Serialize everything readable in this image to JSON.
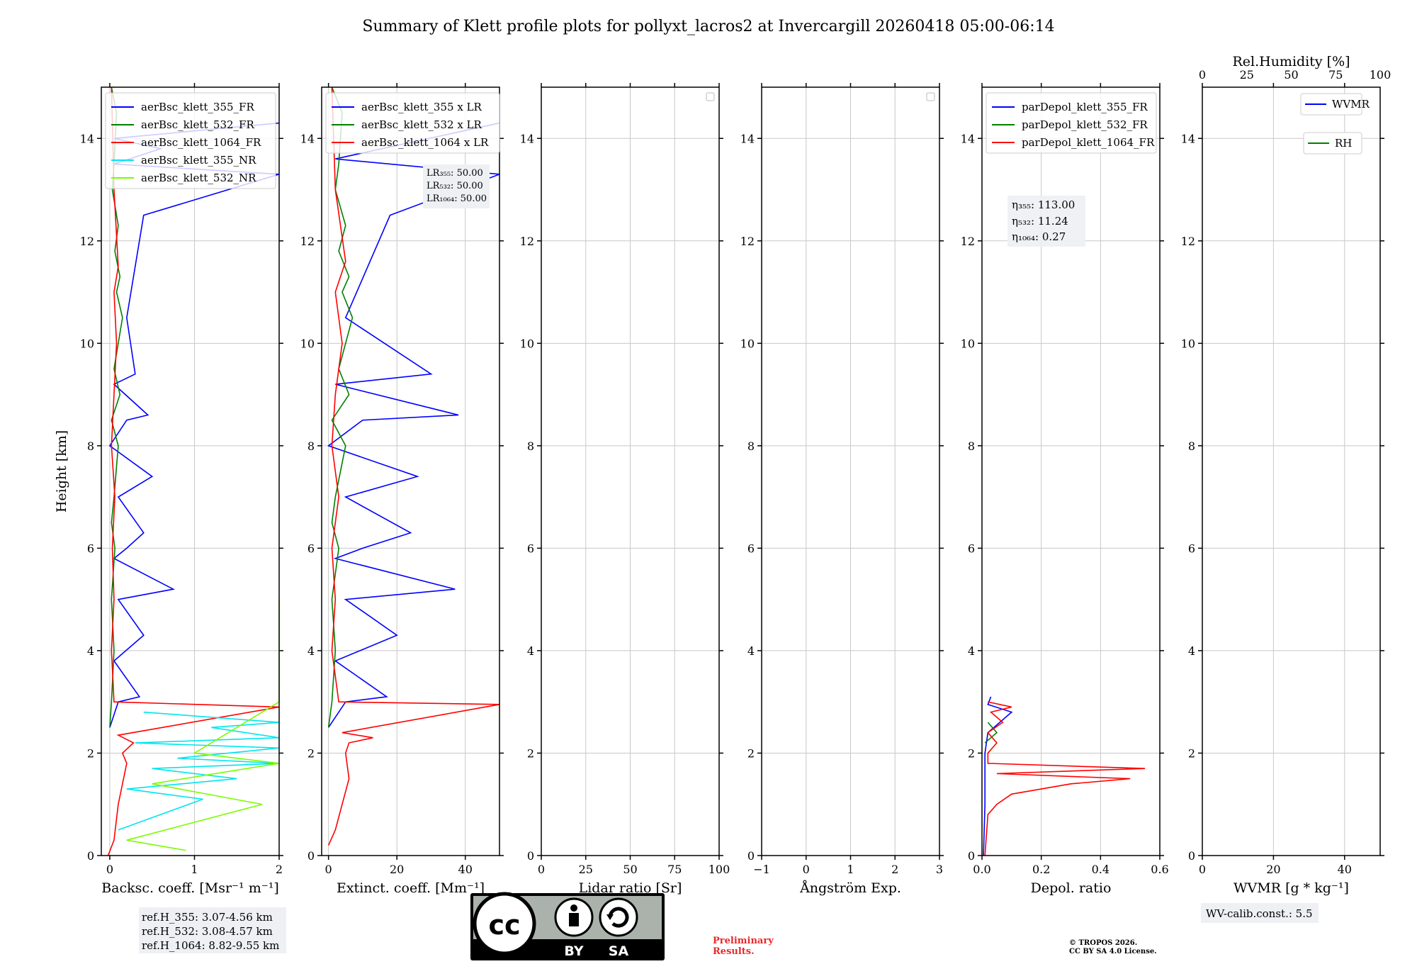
{
  "title": "Summary of Klett profile plots for pollyxt_lacros2 at Invercargill 20260418 05:00-06:14",
  "colors": {
    "c355": "#0000ff",
    "c532": "#008000",
    "c1064": "#ff0000",
    "nr355": "#00e5ee",
    "nr532": "#7cfc00",
    "grid": "#c8c8c8",
    "box": "#eef0f4",
    "prelim": "#e8282b"
  },
  "chart_data": [
    {
      "type": "line",
      "id": "bsc",
      "xlabel": "Backsc. coeff. [Msr⁻¹ m⁻¹]",
      "ylabel": "Height [km]",
      "xlim": [
        -0.1,
        2
      ],
      "ylim": [
        0,
        15
      ],
      "xticks": [
        0,
        1,
        2
      ],
      "xtick_labels": [
        "0",
        "1",
        "2"
      ],
      "yticks": [
        0,
        2,
        4,
        6,
        8,
        10,
        12,
        14
      ],
      "legend": [
        "aerBsc_klett_355_FR",
        "aerBsc_klett_532_FR",
        "aerBsc_klett_1064_FR",
        "aerBsc_klett_355_NR",
        "aerBsc_klett_532_NR"
      ],
      "series": [
        {
          "name": "aerBsc_klett_355_FR",
          "color": "c355",
          "x": [
            0,
            0.1,
            0.35,
            0.05,
            0.4,
            0.1,
            0.75,
            0.05,
            0.2,
            0.4,
            0.1,
            0.5,
            0.0,
            0.2,
            0.45,
            0.05,
            0.3,
            0.2,
            0.4,
            2.0,
            0.05,
            0.6,
            0.05,
            2.0
          ],
          "y": [
            2.5,
            3.0,
            3.1,
            3.8,
            4.3,
            5.0,
            5.2,
            5.8,
            6.0,
            6.3,
            7.0,
            7.4,
            8.0,
            8.5,
            8.6,
            9.2,
            9.4,
            10.5,
            12.5,
            13.3,
            13.5,
            13.8,
            14.0,
            14.3
          ]
        },
        {
          "name": "aerBsc_klett_532_FR",
          "color": "c532",
          "x": [
            0,
            0.02,
            0.05,
            0.02,
            0.06,
            0.02,
            0.05,
            0.1,
            0.02,
            0.12,
            0.05,
            0.15,
            0.08,
            0.12,
            0.06,
            0.1,
            0.03,
            0.05,
            0.08,
            0.02
          ],
          "y": [
            2.5,
            3.0,
            4.0,
            5.0,
            6.0,
            6.5,
            7.0,
            8.0,
            8.5,
            9.0,
            9.5,
            10.5,
            11.0,
            11.3,
            11.8,
            12.3,
            13.0,
            13.5,
            14.5,
            15.0
          ]
        },
        {
          "name": "aerBsc_klett_1064_FR",
          "color": "c1064",
          "x": [
            -0.02,
            0.05,
            0.1,
            0.2,
            0.15,
            0.28,
            0.1,
            2.0,
            0.05,
            0.02,
            0.05,
            0.03,
            0.06,
            0.02,
            0.05,
            0.08,
            0.05,
            0.1,
            0.05,
            0.02
          ],
          "y": [
            0,
            0.3,
            1.0,
            1.8,
            2.0,
            2.2,
            2.35,
            2.9,
            3.0,
            4.0,
            5.0,
            6.0,
            7.0,
            8.0,
            9.0,
            10.0,
            11.0,
            11.5,
            13.0,
            15.0
          ]
        },
        {
          "name": "aerBsc_klett_355_NR",
          "color": "nr355",
          "x": [
            0.1,
            1.1,
            0.2,
            1.5,
            0.5,
            2.0,
            0.8,
            2.0,
            0.3,
            2.0,
            1.2,
            2.0,
            0.4
          ],
          "y": [
            0.5,
            1.1,
            1.3,
            1.5,
            1.7,
            1.8,
            1.9,
            2.1,
            2.2,
            2.3,
            2.5,
            2.6,
            2.8
          ]
        },
        {
          "name": "aerBsc_klett_532_NR",
          "color": "nr532",
          "x": [
            0.9,
            0.2,
            1.8,
            0.5,
            2.0,
            1.0,
            2.0,
            2.0,
            2.0,
            2.0,
            2.0,
            2.0,
            2.0,
            2.0,
            2.0
          ],
          "y": [
            0.1,
            0.3,
            1.0,
            1.4,
            1.8,
            2.0,
            3.0,
            3.3,
            3.6,
            3.9,
            4.2,
            4.4,
            4.6,
            4.8,
            5.0
          ]
        }
      ]
    },
    {
      "type": "line",
      "id": "ext",
      "xlabel": "Extinct. coeff. [Mm⁻¹]",
      "xlim": [
        -2,
        50
      ],
      "ylim": [
        0,
        15
      ],
      "xticks": [
        0,
        20,
        40
      ],
      "xtick_labels": [
        "0",
        "20",
        "40"
      ],
      "yticks": [
        0,
        2,
        4,
        6,
        8,
        10,
        12,
        14
      ],
      "legend": [
        "aerBsc_klett_355 x LR",
        "aerBsc_klett_532 x LR",
        "aerBsc_klett_1064 x LR"
      ],
      "series": [
        {
          "name": "aerBsc_klett_355 x LR",
          "color": "c355",
          "x": [
            0,
            5,
            17,
            2,
            20,
            5,
            37,
            2,
            10,
            24,
            5,
            26,
            0,
            10,
            38,
            2,
            30,
            5,
            18,
            50,
            2,
            50
          ],
          "y": [
            2.5,
            3.0,
            3.1,
            3.8,
            4.3,
            5.0,
            5.2,
            5.8,
            6.0,
            6.3,
            7.0,
            7.4,
            8.0,
            8.5,
            8.6,
            9.2,
            9.4,
            10.5,
            12.5,
            13.3,
            13.6,
            14.3
          ]
        },
        {
          "name": "aerBsc_klett_532 x LR",
          "color": "c532",
          "x": [
            0,
            1,
            2,
            1,
            3,
            1,
            2,
            5,
            1,
            6,
            3,
            7,
            4,
            6,
            3,
            5,
            2,
            3,
            4,
            1
          ],
          "y": [
            2.5,
            3.0,
            4.0,
            5.0,
            6.0,
            6.5,
            7.0,
            8.0,
            8.5,
            9.0,
            9.5,
            10.5,
            11.0,
            11.3,
            11.8,
            12.3,
            13.0,
            13.5,
            14.5,
            15.0
          ]
        },
        {
          "name": "aerBsc_klett_1064 x LR",
          "color": "c1064",
          "x": [
            0,
            2,
            6,
            5,
            6,
            13,
            4,
            50,
            3,
            1,
            2,
            1,
            3,
            1,
            2,
            4,
            2,
            5,
            2,
            1
          ],
          "y": [
            0.2,
            0.5,
            1.5,
            2.0,
            2.2,
            2.3,
            2.4,
            2.95,
            3.0,
            4.0,
            5.0,
            6.0,
            7.0,
            8.0,
            9.0,
            10.0,
            11.0,
            11.6,
            13.0,
            15.0
          ]
        }
      ]
    },
    {
      "type": "line",
      "id": "lr",
      "xlabel": "Lidar ratio [Sr]",
      "xlim": [
        0,
        100
      ],
      "ylim": [
        0,
        15
      ],
      "xticks": [
        0,
        25,
        50,
        75,
        100
      ],
      "xtick_labels": [
        "0",
        "25",
        "50",
        "75",
        "100"
      ],
      "yticks": [
        0,
        2,
        4,
        6,
        8,
        10,
        12,
        14
      ],
      "legend": [],
      "series": []
    },
    {
      "type": "line",
      "id": "ang",
      "xlabel": "Ångström Exp.",
      "xlim": [
        -1,
        3
      ],
      "ylim": [
        0,
        15
      ],
      "xticks": [
        -1,
        0,
        1,
        2,
        3
      ],
      "xtick_labels": [
        "−1",
        "0",
        "1",
        "2",
        "3"
      ],
      "yticks": [
        0,
        2,
        4,
        6,
        8,
        10,
        12,
        14
      ],
      "legend": [],
      "series": []
    },
    {
      "type": "line",
      "id": "dep",
      "xlabel": "Depol. ratio",
      "xlim": [
        0,
        0.6
      ],
      "ylim": [
        0,
        15
      ],
      "xticks": [
        0,
        0.2,
        0.4,
        0.6
      ],
      "xtick_labels": [
        "0.0",
        "0.2",
        "0.4",
        "0.6"
      ],
      "yticks": [
        0,
        2,
        4,
        6,
        8,
        10,
        12,
        14
      ],
      "legend": [
        "parDepol_klett_355_FR",
        "parDepol_klett_532_FR",
        "parDepol_klett_1064_FR"
      ],
      "series": [
        {
          "name": "parDepol_klett_355_FR",
          "color": "c355",
          "x": [
            0.005,
            0.01,
            0.01,
            0.02,
            0.1,
            0.02,
            0.03
          ],
          "y": [
            0,
            1.0,
            2.0,
            2.4,
            2.8,
            2.95,
            3.1
          ]
        },
        {
          "name": "parDepol_klett_532_FR",
          "color": "c532",
          "x": [
            0.01,
            0.05,
            0.02
          ],
          "y": [
            2.2,
            2.4,
            2.6
          ]
        },
        {
          "name": "parDepol_klett_1064_FR",
          "color": "c1064",
          "x": [
            0.01,
            0.02,
            0.05,
            0.1,
            0.3,
            0.5,
            0.05,
            0.55,
            0.02,
            0.02,
            0.05,
            0.02,
            0.07,
            0.03,
            0.1,
            0.02
          ],
          "y": [
            0,
            0.8,
            1.0,
            1.2,
            1.4,
            1.5,
            1.6,
            1.7,
            1.8,
            2.0,
            2.2,
            2.4,
            2.6,
            2.8,
            2.9,
            3.0
          ]
        }
      ]
    },
    {
      "type": "line",
      "id": "wv",
      "xlabel": "WVMR [g * kg⁻¹]",
      "xlim": [
        0,
        50
      ],
      "ylim": [
        0,
        15
      ],
      "xticks": [
        0,
        20,
        40
      ],
      "xtick_labels": [
        "0",
        "20",
        "40"
      ],
      "yticks": [
        0,
        2,
        4,
        6,
        8,
        10,
        12,
        14
      ],
      "top_axis": {
        "label": "Rel.Humidity [%]",
        "ticks": [
          0,
          25,
          50,
          75,
          100
        ]
      },
      "legend": [
        "WVMR",
        "RH"
      ],
      "series": []
    }
  ],
  "lr_box": [
    "LR₃₅₅: 50.00",
    "LR₅₃₂: 50.00",
    "LR₁₀₆₄: 50.00"
  ],
  "eta_box": [
    "η₃₅₅: 113.00",
    "η₅₃₂: 11.24",
    "η₁₀₆₄: 0.27"
  ],
  "refh_box": [
    "ref.H_355: 3.07-4.56 km",
    "ref.H_532: 3.08-4.57 km",
    "ref.H_1064: 8.82-9.55 km"
  ],
  "wvcal_box": "WV-calib.const.: 5.5",
  "preliminary": [
    "Preliminary",
    "Results."
  ],
  "copyright": [
    "© TROPOS 2026.",
    "CC BY SA 4.0 License."
  ],
  "license_badge": {
    "by": "BY",
    "sa": "SA"
  }
}
